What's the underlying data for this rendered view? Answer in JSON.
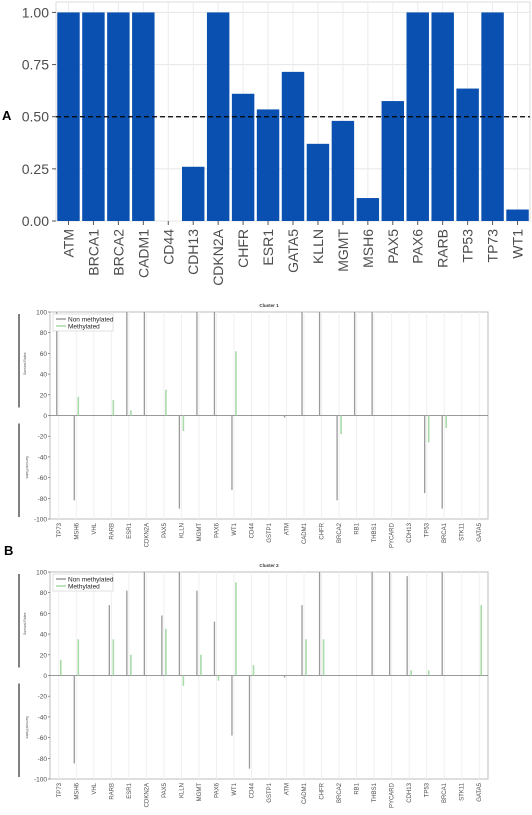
{
  "panel_labels": [
    "A",
    "B"
  ],
  "chart_data": [
    {
      "type": "bar",
      "categories": [
        "ATM",
        "BRCA1",
        "BRCA2",
        "CADM1",
        "CD44",
        "CDH13",
        "CDKN2A",
        "CHFR",
        "ESR1",
        "GATA5",
        "KLLN",
        "MGMT",
        "MSH6",
        "PAX5",
        "PAX6",
        "RARB",
        "TP53",
        "TP73",
        "WT1"
      ],
      "values": [
        1.0,
        1.0,
        1.0,
        1.0,
        0.0,
        0.26,
        1.0,
        0.61,
        0.535,
        0.715,
        0.37,
        0.48,
        0.11,
        0.575,
        1.0,
        1.0,
        0.635,
        1.0,
        0.055
      ],
      "ylim": [
        0,
        1.05
      ],
      "yticks": [
        "0.00",
        "0.25",
        "0.50",
        "0.75",
        "1.00"
      ],
      "reference_line": 0.5,
      "bar_color": "#0a50b0",
      "grid": true
    },
    {
      "type": "bar",
      "title": "Cluster 1",
      "categories": [
        "TP73",
        "MSH6",
        "VHL",
        "RARB",
        "ESR1",
        "CDKN2A",
        "PAX5",
        "KLLN",
        "MGMT",
        "PAX6",
        "WT1",
        "CD44",
        "GSTP1",
        "ATM",
        "CADM1",
        "CHFR",
        "BRCA2",
        "RB1",
        "THBS1",
        "PYCARD",
        "CDH13",
        "TP53",
        "BRCA1",
        "STK11",
        "GATA5"
      ],
      "series": [
        {
          "name": "Non methylated",
          "color": "#9a9a9a",
          "values": [
            100,
            -82,
            0,
            0,
            100,
            100,
            0,
            -90,
            100,
            100,
            -72,
            0,
            0,
            -2,
            100,
            100,
            -82,
            100,
            100,
            0,
            0,
            -75,
            -90,
            0,
            0
          ]
        },
        {
          "name": "Methylated",
          "color": "#a8dba8",
          "values": [
            0,
            18,
            0,
            15,
            5,
            0,
            25,
            -15,
            0,
            0,
            62,
            0,
            0,
            0,
            0,
            0,
            -18,
            0,
            0,
            0,
            0,
            -26,
            -12,
            0,
            0
          ]
        }
      ],
      "ylim": [
        -100,
        100
      ],
      "yticks": [
        "100",
        "80",
        "60",
        "40",
        "20",
        "0",
        "-20",
        "-40",
        "-60",
        "-80",
        "-100"
      ],
      "ylabel_top": "Survival Rates",
      "ylabel_bottom": "Survival Rates"
    },
    {
      "type": "bar",
      "title": "Cluster 2",
      "categories": [
        "TP73",
        "MSH6",
        "VHL",
        "RARB",
        "ESR1",
        "CDKN2A",
        "PAX5",
        "KLLN",
        "MGMT",
        "PAX6",
        "WT1",
        "CD44",
        "GSTP1",
        "ATM",
        "CADM1",
        "CHFR",
        "BRCA2",
        "RB1",
        "THBS1",
        "PYCARD",
        "CDH13",
        "TP53",
        "BRCA1",
        "STK11",
        "GATA5"
      ],
      "series": [
        {
          "name": "Non methylated",
          "color": "#9a9a9a",
          "values": [
            0,
            -85,
            0,
            68,
            82,
            100,
            58,
            100,
            82,
            52,
            -58,
            -90,
            0,
            -2,
            68,
            100,
            0,
            0,
            100,
            100,
            96,
            0,
            100,
            0,
            0
          ]
        },
        {
          "name": "Methylated",
          "color": "#a8dba8",
          "values": [
            15,
            35,
            0,
            35,
            20,
            0,
            45,
            -10,
            20,
            -5,
            90,
            10,
            0,
            0,
            35,
            35,
            0,
            0,
            0,
            0,
            5,
            5,
            0,
            0,
            68
          ]
        }
      ],
      "ylim": [
        -100,
        100
      ],
      "yticks": [
        "100",
        "80",
        "60",
        "40",
        "20",
        "0",
        "-20",
        "-40",
        "-60",
        "-80",
        "-100"
      ],
      "ylabel_top": "Survival Rates",
      "ylabel_bottom": "Survival Rates"
    }
  ]
}
